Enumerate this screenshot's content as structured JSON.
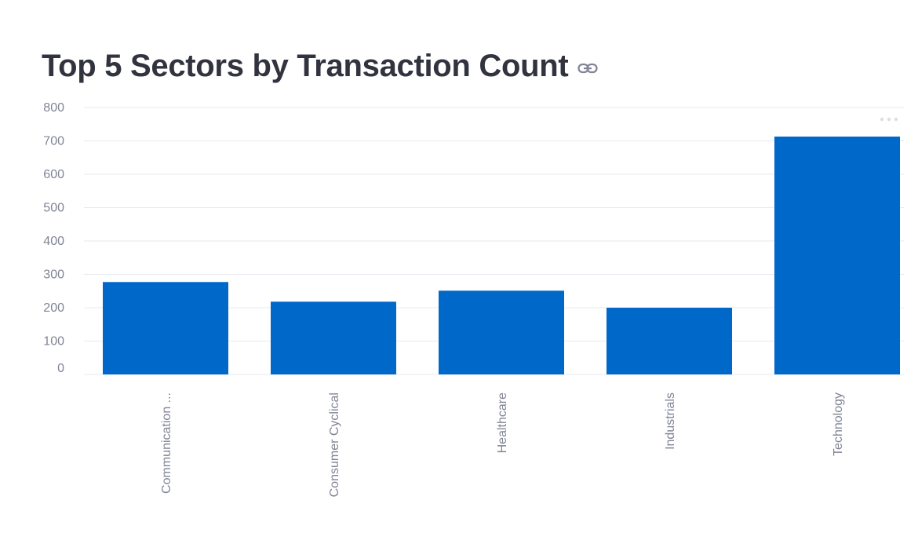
{
  "header": {
    "title": "Top 5 Sectors by Transaction Count",
    "link_icon": "link-icon"
  },
  "toolbar": {
    "menu_icon": "more-horizontal-icon"
  },
  "chart_data": {
    "type": "bar",
    "title": "Top 5 Sectors by Transaction Count",
    "categories": [
      "Communication ...",
      "Consumer Cyclical",
      "Healthcare",
      "Industrials",
      "Technology"
    ],
    "values": [
      277,
      218,
      251,
      200,
      713
    ],
    "xlabel": "",
    "ylabel": "",
    "ylim": [
      0,
      800
    ],
    "yticks": [
      "0",
      "100",
      "200",
      "300",
      "400",
      "500",
      "600",
      "700",
      "800"
    ],
    "grid": true,
    "legend": "none",
    "bar_color": "#0068c9",
    "grid_color": "#e6e9ef",
    "tick_color": "#808495"
  }
}
